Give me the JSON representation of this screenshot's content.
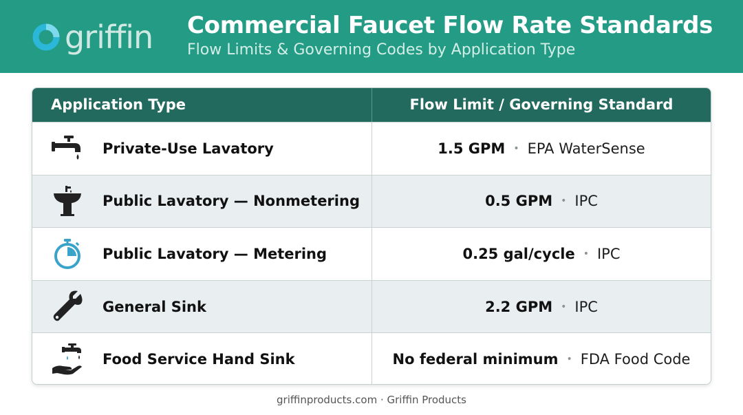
{
  "header": {
    "logo_text": "griffin",
    "title": "Commercial Faucet Flow Rate Standards",
    "subtitle": "Flow Limits & Governing Codes by Application Type"
  },
  "colors": {
    "header_bg": "#239b85",
    "table_header_bg": "#22695e",
    "alt_row_bg": "#e9eef0",
    "accent_icon": "#3aa3c9"
  },
  "table": {
    "columns": [
      "Application Type",
      "Flow Limit / Governing Standard"
    ],
    "rows": [
      {
        "icon": "faucet-drip-icon",
        "application": "Private-Use Lavatory",
        "limit": "1.5 GPM",
        "standard": "EPA WaterSense"
      },
      {
        "icon": "pedestal-sink-icon",
        "application": "Public Lavatory — Nonmetering",
        "limit": "0.5 GPM",
        "standard": "IPC"
      },
      {
        "icon": "stopwatch-icon",
        "application": "Public Lavatory — Metering",
        "limit": "0.25 gal/cycle",
        "standard": "IPC"
      },
      {
        "icon": "wrench-icon",
        "application": "General Sink",
        "limit": "2.2 GPM",
        "standard": "IPC"
      },
      {
        "icon": "hand-wash-icon",
        "application": "Food Service Hand Sink",
        "limit": "No federal minimum",
        "standard": "FDA Food Code"
      }
    ]
  },
  "footer": {
    "text": "griffinproducts.com · Griffin Products"
  }
}
